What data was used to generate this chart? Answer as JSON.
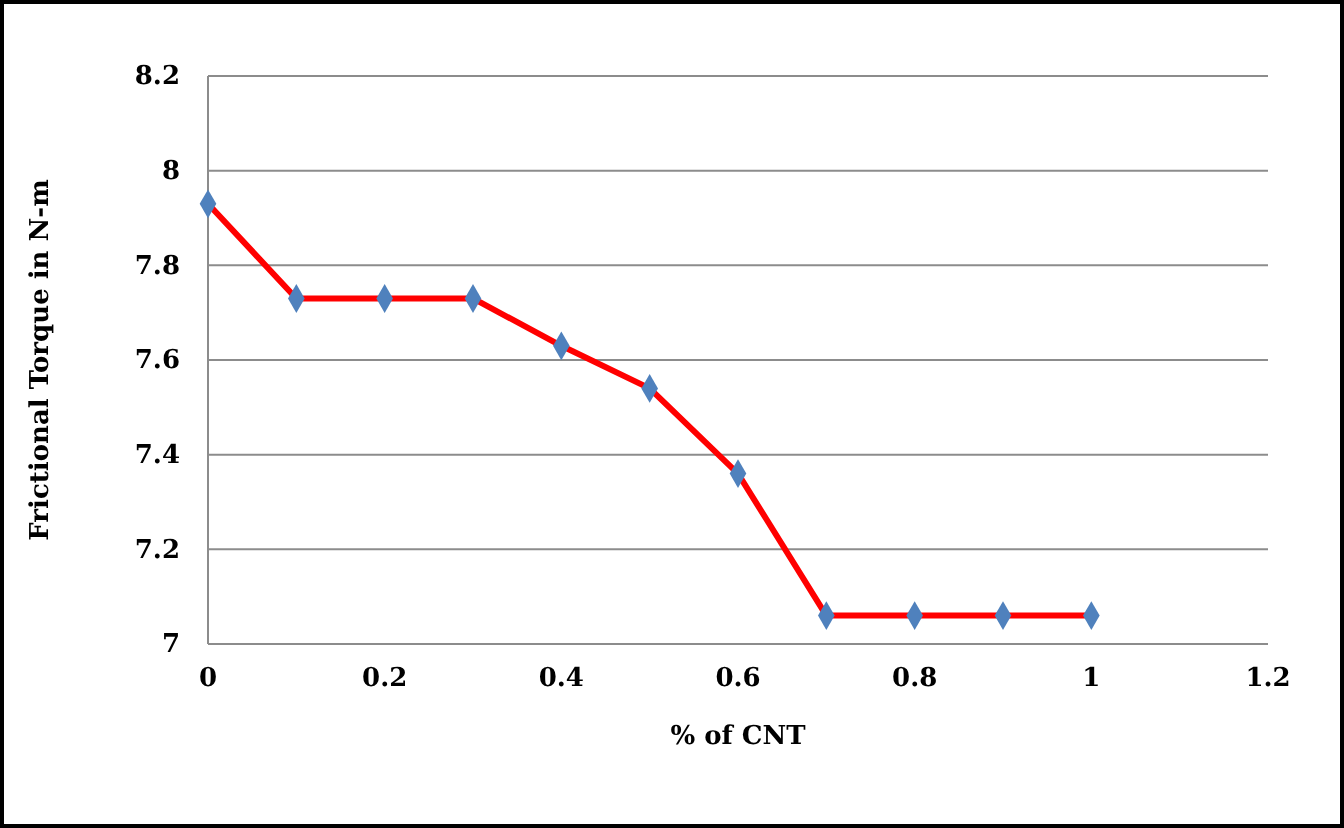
{
  "chart_data": {
    "type": "line",
    "xlabel": "% of CNT",
    "ylabel": "Frictional Torque in N-m",
    "x": [
      0,
      0.1,
      0.2,
      0.3,
      0.4,
      0.5,
      0.6,
      0.7,
      0.8,
      0.9,
      1
    ],
    "series": [
      {
        "color": "#ff0000",
        "values": [
          7.93,
          7.73,
          7.73,
          7.73,
          7.63,
          7.54,
          7.36,
          7.06,
          7.06,
          7.06,
          7.06
        ]
      }
    ],
    "xlim": [
      0,
      1.2
    ],
    "xticks": [
      0,
      0.2,
      0.4,
      0.6,
      0.8,
      1,
      1.2
    ],
    "ylim": [
      7,
      8.2
    ],
    "yticks": [
      7,
      7.2,
      7.4,
      7.6,
      7.8,
      8,
      8.2
    ],
    "grid": "y",
    "marker": "diamond",
    "line_style": "solid"
  }
}
